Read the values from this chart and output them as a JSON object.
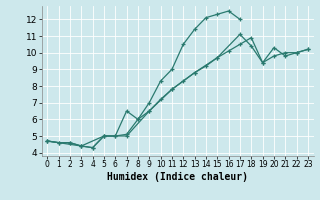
{
  "xlabel": "Humidex (Indice chaleur)",
  "bg_color": "#cde8ec",
  "grid_color": "#ffffff",
  "line_color": "#2a7a6f",
  "xlim": [
    -0.5,
    23.5
  ],
  "ylim": [
    3.8,
    12.8
  ],
  "xticks": [
    0,
    1,
    2,
    3,
    4,
    5,
    6,
    7,
    8,
    9,
    10,
    11,
    12,
    13,
    14,
    15,
    16,
    17,
    18,
    19,
    20,
    21,
    22,
    23
  ],
  "yticks": [
    4,
    5,
    6,
    7,
    8,
    9,
    10,
    11,
    12
  ],
  "curve1_x": [
    0,
    1,
    2,
    3,
    4,
    5,
    6,
    7,
    8,
    9,
    10,
    11,
    12,
    13,
    14,
    15,
    16,
    17
  ],
  "curve1_y": [
    4.7,
    4.6,
    4.6,
    4.4,
    4.3,
    5.0,
    5.0,
    5.1,
    6.0,
    7.0,
    8.3,
    9.0,
    10.5,
    11.4,
    12.1,
    12.3,
    12.5,
    12.0
  ],
  "curve2_x": [
    0,
    1,
    2,
    3,
    4,
    5,
    6,
    7,
    8,
    9,
    10,
    11,
    12,
    13,
    14,
    15,
    16,
    17,
    18,
    19,
    20,
    21,
    22,
    23
  ],
  "curve2_y": [
    4.7,
    4.6,
    4.6,
    4.4,
    4.3,
    5.0,
    5.0,
    6.5,
    6.0,
    6.5,
    7.2,
    7.8,
    8.3,
    8.8,
    9.2,
    9.7,
    10.1,
    10.5,
    10.9,
    9.4,
    9.8,
    10.0,
    10.0,
    10.2
  ],
  "curve3_x": [
    0,
    3,
    5,
    7,
    9,
    11,
    13,
    15,
    17,
    18,
    19,
    20,
    21,
    22,
    23
  ],
  "curve3_y": [
    4.7,
    4.4,
    5.0,
    5.0,
    6.5,
    7.8,
    8.8,
    9.7,
    11.1,
    10.4,
    9.4,
    10.3,
    9.8,
    10.0,
    10.2
  ]
}
